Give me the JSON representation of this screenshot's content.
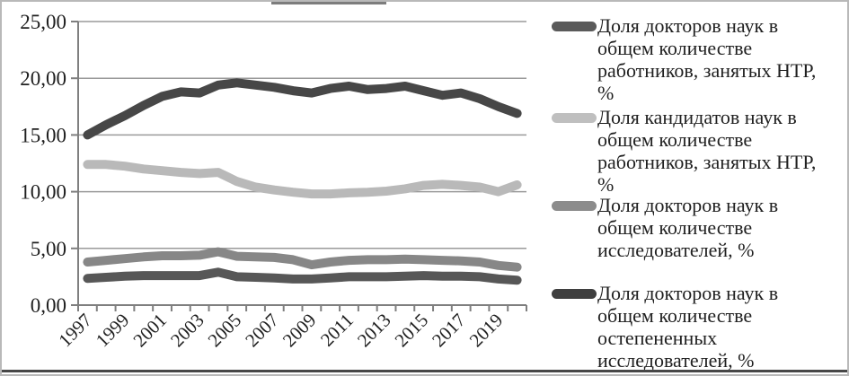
{
  "chart_data": {
    "type": "line",
    "x": [
      1997,
      1998,
      1999,
      2000,
      2001,
      2002,
      2003,
      2004,
      2005,
      2006,
      2007,
      2008,
      2009,
      2010,
      2011,
      2012,
      2013,
      2014,
      2015,
      2016,
      2017,
      2018,
      2019,
      2020
    ],
    "x_tick_labels": [
      "1997",
      "1999",
      "2001",
      "2003",
      "2005",
      "2007",
      "2009",
      "2011",
      "2013",
      "2015",
      "2017",
      "2019"
    ],
    "y_ticks": [
      0,
      5,
      10,
      15,
      20,
      25
    ],
    "y_tick_labels": [
      "0,00",
      "5,00",
      "10,00",
      "15,00",
      "20,00",
      "25,00"
    ],
    "ylim": [
      0,
      25
    ],
    "grid": true,
    "legend_position": "right",
    "series": [
      {
        "name": "Доля докторов наук в общем количестве работников, занятых НТР, %",
        "color": "#474747",
        "legend_color": "#5a5a5a",
        "values": [
          15.0,
          15.9,
          16.7,
          17.6,
          18.4,
          18.8,
          18.7,
          19.4,
          19.6,
          19.4,
          19.2,
          18.9,
          18.7,
          19.1,
          19.3,
          19.0,
          19.1,
          19.3,
          18.9,
          18.5,
          18.7,
          18.2,
          17.5,
          16.9
        ]
      },
      {
        "name": "Доля кандидатов наук в общем количестве работников, занятых НТР, %",
        "color": "#b9b9b9",
        "legend_color": "#bfbfbf",
        "values": [
          12.4,
          12.4,
          12.25,
          12.0,
          11.85,
          11.7,
          11.6,
          11.7,
          10.9,
          10.4,
          10.15,
          9.95,
          9.8,
          9.8,
          9.9,
          9.95,
          10.05,
          10.25,
          10.55,
          10.65,
          10.55,
          10.4,
          10.0,
          10.6
        ]
      },
      {
        "name": "Доля докторов наук в общем количестве исследователей, %",
        "color": "#878787",
        "legend_color": "#8c8c8c",
        "values": [
          3.8,
          3.95,
          4.1,
          4.25,
          4.35,
          4.35,
          4.4,
          4.7,
          4.3,
          4.25,
          4.2,
          4.0,
          3.55,
          3.8,
          3.95,
          4.0,
          4.0,
          4.05,
          4.0,
          3.95,
          3.9,
          3.8,
          3.5,
          3.35
        ]
      },
      {
        "name": "Доля докторов наук в общем количестве остепененных исследователей, %",
        "color": "#575757",
        "legend_color": "#3f3f3f",
        "values": [
          2.35,
          2.45,
          2.55,
          2.6,
          2.6,
          2.6,
          2.6,
          2.9,
          2.5,
          2.45,
          2.4,
          2.3,
          2.3,
          2.4,
          2.5,
          2.5,
          2.5,
          2.55,
          2.6,
          2.55,
          2.55,
          2.5,
          2.3,
          2.2
        ]
      }
    ]
  },
  "style_colors": {
    "axis": "#7f7f7f",
    "grid": "#9a9a9a",
    "tick": "#7f7f7f",
    "text": "#1f1f1f",
    "frame_border": "#b9b9b9",
    "bottom_bar": "#474747"
  }
}
